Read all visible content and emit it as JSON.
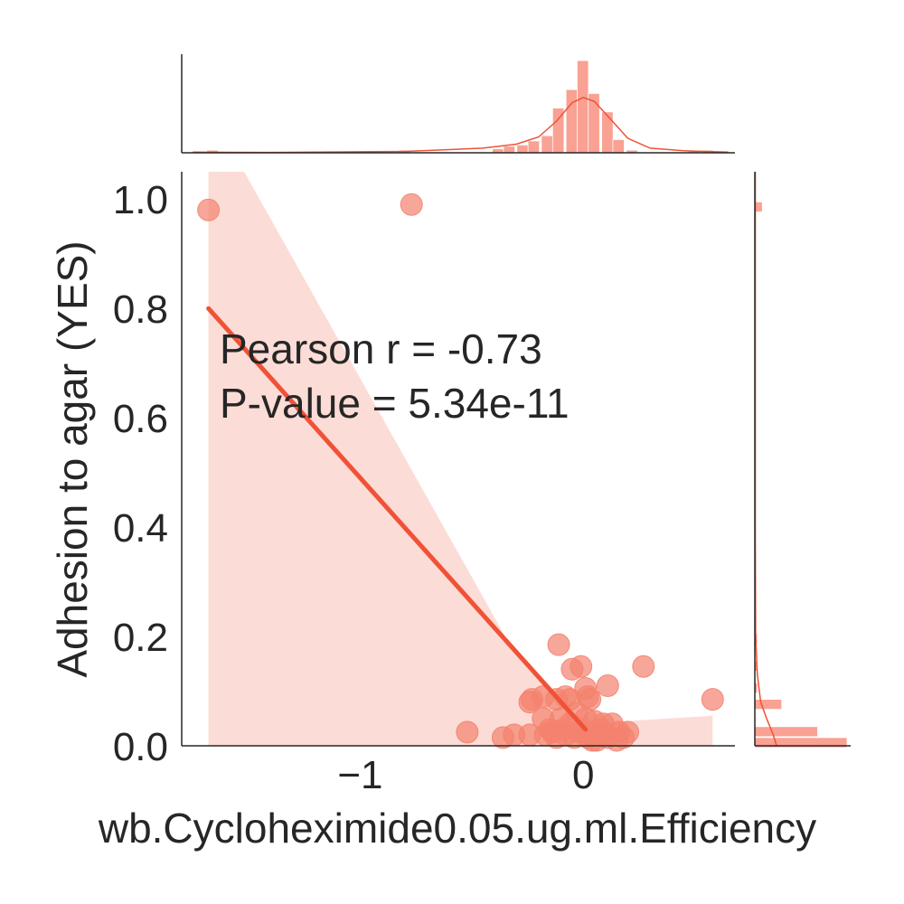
{
  "chart_data": {
    "type": "scatter",
    "xlabel": "wb.Cycloheximide0.05.ug.ml.Efficiency",
    "ylabel": "Adhesion to agar (YES)",
    "xlim": [
      -1.8,
      0.68
    ],
    "ylim": [
      0,
      1.05
    ],
    "x_ticks": [
      -1,
      0
    ],
    "x_tick_labels": [
      "−1",
      "0"
    ],
    "y_ticks": [
      0.0,
      0.2,
      0.4,
      0.6,
      0.8,
      1.0
    ],
    "y_tick_labels": [
      "0.0",
      "0.2",
      "0.4",
      "0.6",
      "0.8",
      "1.0"
    ],
    "annotation": [
      "Pearson r = -0.73",
      "P-value = 5.34e-11"
    ],
    "colors": {
      "point": "#f4826e",
      "line": "#f05237",
      "band": "#fcdcd6",
      "hist": "#f9a193"
    },
    "points": [
      {
        "x": -1.68,
        "y": 0.98
      },
      {
        "x": -0.77,
        "y": 0.99
      },
      {
        "x": 0.58,
        "y": 0.085
      },
      {
        "x": 0.27,
        "y": 0.145
      },
      {
        "x": -0.11,
        "y": 0.185
      },
      {
        "x": -0.01,
        "y": 0.145
      },
      {
        "x": -0.05,
        "y": 0.14
      },
      {
        "x": 0.11,
        "y": 0.11
      },
      {
        "x": 0.01,
        "y": 0.105
      },
      {
        "x": 0.02,
        "y": 0.09
      },
      {
        "x": -0.24,
        "y": 0.08
      },
      {
        "x": -0.23,
        "y": 0.085
      },
      {
        "x": -0.18,
        "y": 0.09
      },
      {
        "x": -0.12,
        "y": 0.085
      },
      {
        "x": -0.08,
        "y": 0.09
      },
      {
        "x": -0.06,
        "y": 0.085
      },
      {
        "x": 0.03,
        "y": 0.085
      },
      {
        "x": -0.52,
        "y": 0.025
      },
      {
        "x": -0.36,
        "y": 0.015
      },
      {
        "x": -0.31,
        "y": 0.02
      },
      {
        "x": -0.24,
        "y": 0.02
      },
      {
        "x": -0.18,
        "y": 0.05
      },
      {
        "x": -0.15,
        "y": 0.03
      },
      {
        "x": -0.1,
        "y": 0.05
      },
      {
        "x": -0.06,
        "y": 0.04
      },
      {
        "x": -0.03,
        "y": 0.06
      },
      {
        "x": 0.0,
        "y": 0.03
      },
      {
        "x": 0.03,
        "y": 0.02
      },
      {
        "x": 0.05,
        "y": 0.045
      },
      {
        "x": 0.08,
        "y": 0.03
      },
      {
        "x": 0.1,
        "y": 0.02
      },
      {
        "x": 0.13,
        "y": 0.04
      },
      {
        "x": 0.16,
        "y": 0.025
      },
      {
        "x": 0.18,
        "y": 0.015
      },
      {
        "x": -0.17,
        "y": 0.02
      },
      {
        "x": -0.12,
        "y": 0.015
      },
      {
        "x": -0.08,
        "y": 0.02
      },
      {
        "x": -0.04,
        "y": 0.015
      },
      {
        "x": 0.02,
        "y": 0.015
      },
      {
        "x": 0.06,
        "y": 0.01
      },
      {
        "x": 0.11,
        "y": 0.015
      },
      {
        "x": 0.15,
        "y": 0.01
      },
      {
        "x": 0.2,
        "y": 0.025
      },
      {
        "x": -0.02,
        "y": 0.025
      },
      {
        "x": 0.07,
        "y": 0.02
      },
      {
        "x": -0.09,
        "y": 0.03
      },
      {
        "x": 0.01,
        "y": 0.05
      },
      {
        "x": 0.09,
        "y": 0.04
      },
      {
        "x": -0.14,
        "y": 0.025
      },
      {
        "x": 0.04,
        "y": 0.01
      }
    ],
    "regression": {
      "x": [
        -1.68,
        0.01
      ],
      "y": [
        0.8,
        0.03
      ]
    },
    "confidence_band": [
      {
        "x": -1.68,
        "y": 1.05
      },
      {
        "x": -1.52,
        "y": 1.05
      },
      {
        "x": -0.35,
        "y": 0.2
      },
      {
        "x": 0.0,
        "y": 0.04
      },
      {
        "x": 0.58,
        "y": 0.055
      },
      {
        "x": 0.58,
        "y": 0.0
      },
      {
        "x": -1.68,
        "y": 0.0
      }
    ],
    "x_histogram": {
      "bin_centers": [
        -1.66,
        -0.8,
        -0.38,
        -0.33,
        -0.27,
        -0.22,
        -0.16,
        -0.11,
        -0.05,
        0.0,
        0.05,
        0.11,
        0.16,
        0.22,
        0.27,
        0.33,
        0.38,
        0.44,
        0.5,
        0.56
      ],
      "counts": [
        0.2,
        0.2,
        0.3,
        0.5,
        0.6,
        0.9,
        1.3,
        3.4,
        4.8,
        7.0,
        4.5,
        3.1,
        1.0,
        0.2,
        0,
        0,
        0,
        0,
        0.2,
        0.2
      ],
      "kde": [
        [
          -1.75,
          0.05
        ],
        [
          -1.4,
          0.03
        ],
        [
          -0.8,
          0.1
        ],
        [
          -0.45,
          0.35
        ],
        [
          -0.3,
          0.65
        ],
        [
          -0.2,
          1.2
        ],
        [
          -0.12,
          2.4
        ],
        [
          -0.05,
          3.8
        ],
        [
          0.0,
          4.2
        ],
        [
          0.05,
          3.9
        ],
        [
          0.12,
          2.6
        ],
        [
          0.2,
          1.1
        ],
        [
          0.3,
          0.35
        ],
        [
          0.45,
          0.15
        ],
        [
          0.65,
          0.05
        ]
      ]
    },
    "y_histogram": {
      "bin_centers": [
        0.005,
        0.025,
        0.075,
        0.105,
        0.145,
        0.195,
        0.985
      ],
      "counts": [
        11,
        7.5,
        3.2,
        0.3,
        0.3,
        0.3,
        0.9
      ],
      "kde": [
        [
          0.0,
          2.6
        ],
        [
          0.02,
          2.2
        ],
        [
          0.05,
          1.4
        ],
        [
          0.08,
          0.7
        ],
        [
          0.13,
          0.3
        ],
        [
          0.2,
          0.1
        ],
        [
          0.4,
          0.05
        ],
        [
          0.7,
          0.05
        ],
        [
          1.05,
          0.05
        ]
      ]
    }
  }
}
